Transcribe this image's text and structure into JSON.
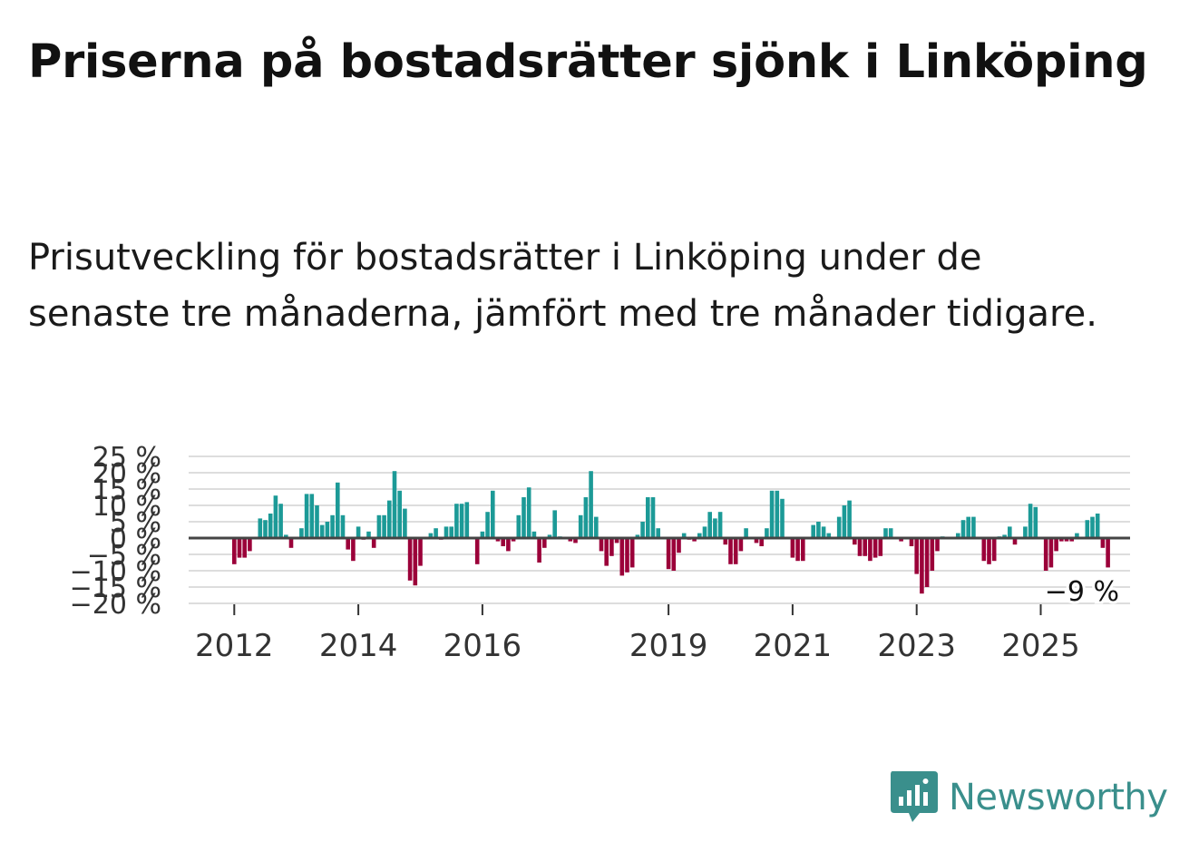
{
  "title": "Priserna på bostadsrätter sjönk i Linköping",
  "subtitle": "Prisutveckling för bostadsrätter i Linköping under de senaste tre månaderna, jämfört med tre månader tidigare.",
  "brand": {
    "name": "Newsworthy",
    "icon": "newsworthy-logo-icon"
  },
  "colors": {
    "positive": "#1c9a97",
    "negative": "#9b0039",
    "grid": "#dddddd",
    "axis": "#444444",
    "brand": "#3a8f8c"
  },
  "chart_data": {
    "type": "bar",
    "title": "Priserna på bostadsrätter sjönk i Linköping",
    "subtitle": "Prisutveckling för bostadsrätter i Linköping under de senaste tre månaderna, jämfört med tre månader tidigare.",
    "xlabel": "",
    "ylabel": "",
    "ylim": [
      -20,
      25
    ],
    "yticks": [
      25,
      20,
      15,
      10,
      5,
      0,
      -5,
      -10,
      -15,
      -20
    ],
    "ytick_labels": [
      "25 %",
      "20 %",
      "15 %",
      "10 %",
      "5 %",
      "0 %",
      "−5 %",
      "−10 %",
      "−15 %",
      "−20 %"
    ],
    "xticks": [
      {
        "label": "2012",
        "index": 0
      },
      {
        "label": "2014",
        "index": 24
      },
      {
        "label": "2016",
        "index": 48
      },
      {
        "label": "2019",
        "index": 84
      },
      {
        "label": "2021",
        "index": 108
      },
      {
        "label": "2023",
        "index": 132
      },
      {
        "label": "2025",
        "index": 156
      }
    ],
    "start": "2012-01",
    "values": [
      -8,
      -6,
      -6,
      -4,
      0,
      6,
      5.5,
      7.5,
      13,
      10.5,
      1,
      -3,
      0,
      3,
      13.5,
      13.5,
      10,
      4,
      5,
      7,
      17,
      7,
      -3.5,
      -7,
      3.5,
      -0.5,
      2,
      -3,
      7,
      7,
      11.5,
      20.5,
      14.5,
      9,
      -13,
      -14.5,
      -8.5,
      0,
      1.5,
      3,
      -0.5,
      3.5,
      3.5,
      10.5,
      10.5,
      11,
      0,
      -8,
      2,
      8,
      14.5,
      -1,
      -2.5,
      -4,
      -1,
      7,
      12.5,
      15.5,
      2,
      -7.5,
      -3,
      1,
      8.5,
      0.5,
      0,
      -1,
      -1.5,
      7,
      12.5,
      20.5,
      6.5,
      -4,
      -8.5,
      -5.5,
      -1.5,
      -11.5,
      -10.5,
      -9,
      1,
      5,
      12.5,
      12.5,
      3,
      0,
      -9.5,
      -10,
      -4.5,
      1.5,
      -0.5,
      -1,
      1.5,
      3.5,
      8,
      6,
      8,
      -2,
      -8,
      -8,
      -4,
      3,
      0,
      -1.5,
      -2.5,
      3,
      14.5,
      14.5,
      12,
      0,
      -6,
      -7,
      -7,
      0,
      4,
      5,
      3.5,
      1.5,
      0,
      6.5,
      10,
      11.5,
      -2,
      -5.5,
      -5.5,
      -7,
      -6,
      -5.5,
      3,
      3,
      0,
      -1,
      0,
      -2.5,
      -11,
      -17,
      -15,
      -10,
      -4,
      0.5,
      0,
      0,
      1.5,
      5.5,
      6.5,
      6.5,
      0,
      -7,
      -8,
      -7,
      0.5,
      1,
      3.5,
      -2,
      0,
      3.5,
      10.5,
      9.5,
      0,
      -10,
      -9,
      -4,
      -1,
      -1,
      -1,
      1.5,
      0,
      5.5,
      6.5,
      7.5,
      -3,
      -9
    ],
    "last_label": "−9 %"
  }
}
